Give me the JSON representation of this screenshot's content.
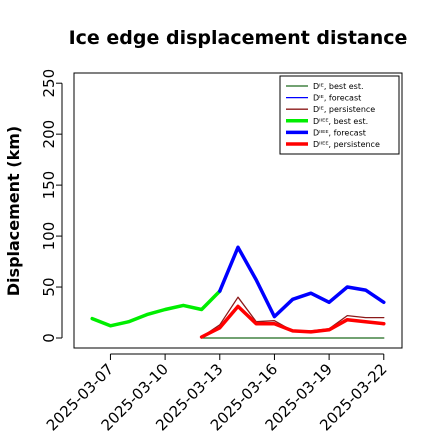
{
  "chart_data": {
    "type": "line",
    "title": "Ice edge displacement distance",
    "xlabel": "",
    "ylabel": "Displacement (km)",
    "ylim": [
      0,
      260
    ],
    "xlim": [
      "2025-03-05",
      "2025-03-23"
    ],
    "yticks": [
      "0",
      "50",
      "100",
      "150",
      "200",
      "250"
    ],
    "xticks": [
      {
        "label": "2025-03-07",
        "date": "2025-03-07",
        "color": "#000000"
      },
      {
        "label": "2025-03-10",
        "date": "2025-03-10",
        "color": "#000000"
      },
      {
        "label": "2025-03-13",
        "date": "2025-03-13",
        "color": "#228b22"
      },
      {
        "label": "2025-03-16",
        "date": "2025-03-16",
        "color": "#000000"
      },
      {
        "label": "2025-03-19",
        "date": "2025-03-19",
        "color": "#000000"
      },
      {
        "label": "2025-03-22",
        "date": "2025-03-22",
        "color": "#000000"
      }
    ],
    "legend_position": "top-right",
    "grid": false,
    "series": [
      {
        "name": "Dᴵᴱ, best est.",
        "color": "#1e6b1e",
        "width": 1.3,
        "x": [
          "2025-03-12",
          "2025-03-13",
          "2025-03-14",
          "2025-03-15",
          "2025-03-16",
          "2025-03-17",
          "2025-03-18",
          "2025-03-19",
          "2025-03-20",
          "2025-03-21",
          "2025-03-22"
        ],
        "y": [
          0,
          0,
          0,
          0,
          0,
          0,
          0,
          0,
          0,
          0,
          0
        ]
      },
      {
        "name": "Dᴵᴱ, forecast",
        "color": "#0000ff",
        "width": 1.3,
        "x": [],
        "y": []
      },
      {
        "name": "Dᴵᴱ, persistence",
        "color": "#8b1a1a",
        "width": 1.3,
        "x": [
          "2025-03-12",
          "2025-03-13",
          "2025-03-14",
          "2025-03-15",
          "2025-03-16",
          "2025-03-17",
          "2025-03-18",
          "2025-03-19",
          "2025-03-20",
          "2025-03-21",
          "2025-03-22"
        ],
        "y": [
          1,
          13,
          40,
          16,
          17,
          7,
          7,
          9,
          22,
          20,
          20
        ]
      },
      {
        "name": "Dᴵᴵᴱᴱ, best est.",
        "color": "#00ee00",
        "width": 3.5,
        "x": [
          "2025-03-06",
          "2025-03-07",
          "2025-03-08",
          "2025-03-09",
          "2025-03-10",
          "2025-03-11",
          "2025-03-12",
          "2025-03-13"
        ],
        "y": [
          19,
          12,
          16,
          23,
          28,
          32,
          28,
          46
        ]
      },
      {
        "name": "Dᴵᴵᴱᴱ, forecast",
        "color": "#0000ff",
        "width": 3.5,
        "x": [
          "2025-03-13",
          "2025-03-14",
          "2025-03-15",
          "2025-03-16",
          "2025-03-17",
          "2025-03-18",
          "2025-03-19",
          "2025-03-20",
          "2025-03-21",
          "2025-03-22"
        ],
        "y": [
          46,
          89,
          57,
          21,
          38,
          44,
          35,
          50,
          47,
          35
        ]
      },
      {
        "name": "Dᴵᴵᴱᴱ, persistence",
        "color": "#ff0000",
        "width": 3.5,
        "x": [
          "2025-03-12",
          "2025-03-13",
          "2025-03-14",
          "2025-03-15",
          "2025-03-16",
          "2025-03-17",
          "2025-03-18",
          "2025-03-19",
          "2025-03-20",
          "2025-03-21",
          "2025-03-22"
        ],
        "y": [
          1,
          10,
          31,
          14,
          14,
          7,
          6,
          8,
          18,
          16,
          14
        ]
      }
    ]
  }
}
